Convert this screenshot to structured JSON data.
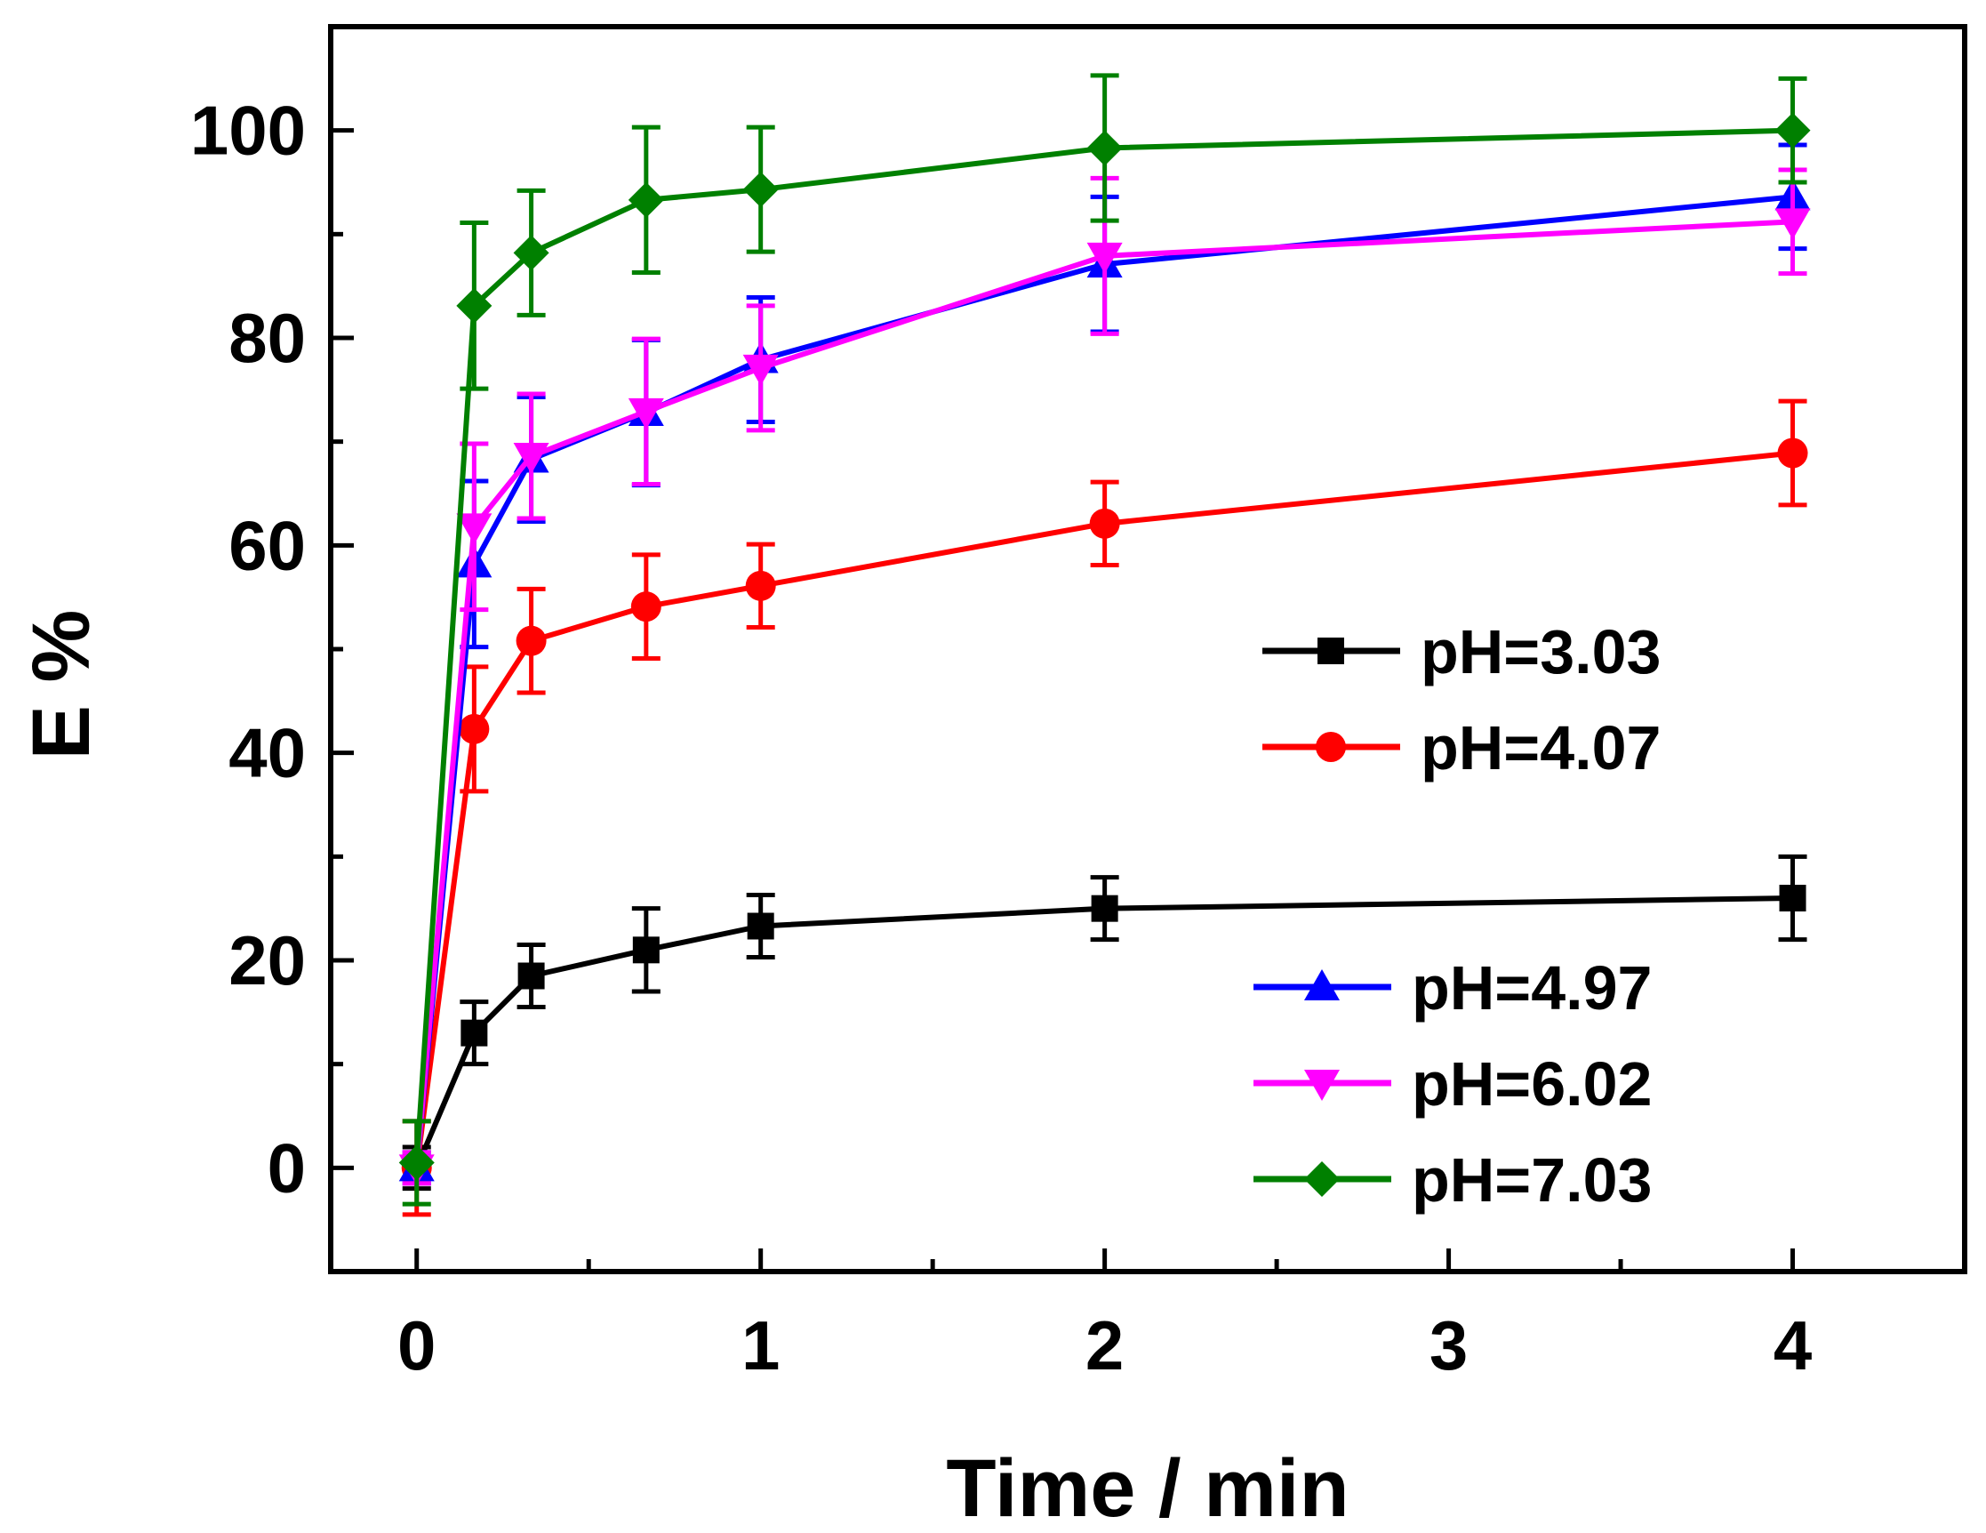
{
  "chart_data": {
    "type": "line",
    "xlabel": "Time / min",
    "ylabel": "E %",
    "xlim": [
      -0.25,
      4.5
    ],
    "ylim": [
      -10,
      110
    ],
    "xticks": [
      0,
      1,
      2,
      3,
      4
    ],
    "yticks": [
      0,
      20,
      40,
      60,
      80,
      100
    ],
    "grid": false,
    "legend_placement": "right",
    "x": [
      0,
      0.167,
      0.333,
      0.667,
      1,
      2,
      4
    ],
    "series": [
      {
        "name": "pH=3.03",
        "color": "#000000",
        "marker": "square",
        "values": [
          0,
          13,
          18.5,
          21,
          23.3,
          25,
          26
        ],
        "errors": [
          2,
          3,
          3,
          4,
          3,
          3,
          4
        ]
      },
      {
        "name": "pH=4.07",
        "color": "#ff0000",
        "marker": "circle",
        "values": [
          0,
          42.3,
          50.8,
          54.1,
          56.1,
          62.1,
          68.9
        ],
        "errors": [
          4.5,
          6,
          5,
          5,
          4,
          4,
          5
        ]
      },
      {
        "name": "pH=4.97",
        "color": "#0000ff",
        "marker": "triangle-up",
        "values": [
          0,
          58.2,
          68.3,
          72.8,
          77.9,
          87.1,
          93.6
        ],
        "errors": [
          1.5,
          8,
          6,
          7,
          6,
          6.5,
          5
        ]
      },
      {
        "name": "pH=6.02",
        "color": "#ff00ff",
        "marker": "triangle-down",
        "values": [
          0,
          61.8,
          68.6,
          72.9,
          77.1,
          87.9,
          91.2
        ],
        "errors": [
          1.5,
          8,
          6,
          7,
          6,
          7.5,
          5
        ]
      },
      {
        "name": "pH=7.03",
        "color": "#008000",
        "marker": "diamond",
        "values": [
          0.5,
          83.1,
          88.2,
          93.3,
          94.3,
          98.3,
          100
        ],
        "errors": [
          4,
          8,
          6,
          7,
          6,
          7,
          5
        ]
      }
    ]
  }
}
